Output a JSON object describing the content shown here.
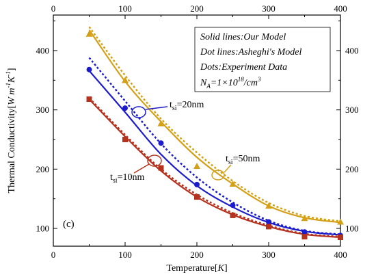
{
  "chart_data": {
    "type": "line",
    "panel_label": "(c)",
    "xlabel": "Temperature[K]",
    "ylabel": "Thermal Conductivity[W m⁻¹K⁻¹]",
    "xlim": [
      0,
      400
    ],
    "ylim": [
      70,
      460
    ],
    "x_ticks": [
      0,
      100,
      200,
      300,
      400
    ],
    "y_ticks": [
      100,
      200,
      300,
      400
    ],
    "top_axis_ticks": [
      0,
      100,
      200,
      300,
      400
    ],
    "right_axis_ticks": [
      100,
      200,
      300,
      400
    ],
    "grid": false,
    "legend_box": [
      "Solid lines:Our Model",
      "Dot lines:Asheghi's Model",
      "Dots:Experiment Data",
      "N_A=1×10^18/cm^3"
    ],
    "legend_placement": "top-right",
    "colors": {
      "t50": "#d4a017",
      "t20": "#1c1ccc",
      "t10": "#b5321e"
    },
    "annotations": [
      {
        "text": "t_si=50nm",
        "series": "t50"
      },
      {
        "text": "t_si=20nm",
        "series": "t20"
      },
      {
        "text": "t_si=10nm",
        "series": "t10"
      }
    ],
    "series": [
      {
        "id": "t50",
        "label": "t_si=50nm",
        "marker": "triangle",
        "experiment": {
          "x": [
            50,
            100,
            150,
            200,
            250,
            300,
            350,
            400
          ],
          "y": [
            428,
            350,
            277,
            205,
            175,
            138,
            117,
            111
          ]
        },
        "our_model": {
          "x": [
            50,
            100,
            150,
            200,
            250,
            300,
            350,
            400
          ],
          "y": [
            435,
            348,
            280,
            220,
            175,
            138,
            118,
            110
          ]
        },
        "asheghi_model": {
          "x": [
            50,
            100,
            150,
            200,
            250,
            300,
            350,
            400
          ],
          "y": [
            440,
            358,
            285,
            228,
            180,
            143,
            121,
            112
          ]
        }
      },
      {
        "id": "t20",
        "label": "t_si=20nm",
        "marker": "circle",
        "experiment": {
          "x": [
            50,
            100,
            150,
            200,
            250,
            300,
            350,
            400
          ],
          "y": [
            368,
            303,
            244,
            174,
            139,
            111,
            94,
            88
          ]
        },
        "our_model": {
          "x": [
            50,
            100,
            150,
            200,
            250,
            300,
            350,
            400
          ],
          "y": [
            366,
            296,
            225,
            172,
            136,
            110,
            95,
            89
          ]
        },
        "asheghi_model": {
          "x": [
            50,
            100,
            150,
            200,
            250,
            300,
            350,
            400
          ],
          "y": [
            388,
            315,
            243,
            186,
            144,
            113,
            96,
            90
          ]
        }
      },
      {
        "id": "t10",
        "label": "t_si=10nm",
        "marker": "square",
        "experiment": {
          "x": [
            50,
            100,
            150,
            200,
            250,
            300,
            350,
            400
          ],
          "y": [
            318,
            250,
            202,
            153,
            122,
            103,
            86,
            85
          ]
        },
        "our_model": {
          "x": [
            50,
            100,
            150,
            200,
            250,
            300,
            350,
            400
          ],
          "y": [
            318,
            255,
            197,
            153,
            123,
            103,
            90,
            85
          ]
        },
        "asheghi_model": {
          "x": [
            50,
            100,
            150,
            200,
            250,
            300,
            350,
            400
          ],
          "y": [
            320,
            258,
            200,
            157,
            126,
            105,
            91,
            86
          ]
        }
      }
    ]
  }
}
